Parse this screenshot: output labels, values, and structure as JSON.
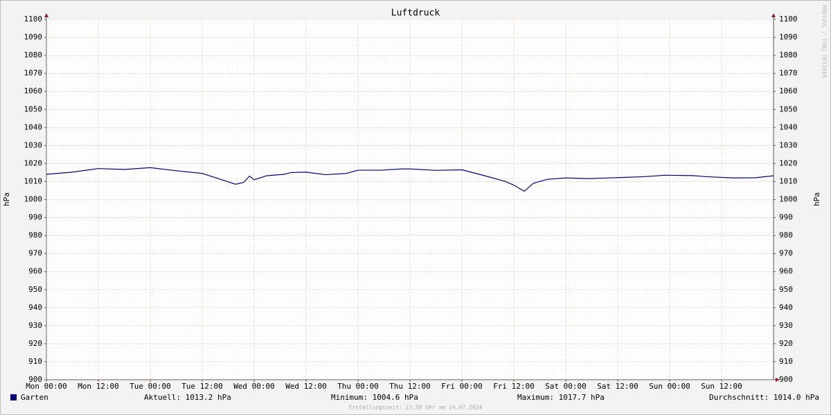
{
  "chart_data": {
    "type": "line",
    "title": "Luftdruck",
    "y_label": "hPa",
    "y2_label": "hPa",
    "watermark": "RRDTOOL / TOBI OETIKER",
    "footer": "Erstellungszeit: 23:58 Uhr am 14.07.2024",
    "x": [
      0,
      6,
      12,
      18,
      24,
      30,
      36,
      40.5,
      43.7,
      45.6,
      46.9,
      48,
      50.9,
      54.9,
      56.5,
      60,
      64.5,
      69.3,
      72,
      77.3,
      82.1,
      84,
      90.1,
      96,
      101.3,
      106.1,
      108,
      110.4,
      112.5,
      115.7,
      120,
      125.3,
      132,
      138.1,
      142.9,
      149.3,
      152.5,
      158.9,
      163.7,
      168
    ],
    "series": [
      {
        "name": "Garten",
        "color": "#000080",
        "values": [
          1014,
          1015.2,
          1017.2,
          1016.7,
          1017.7,
          1016,
          1014.5,
          1011,
          1008.5,
          1009.5,
          1013,
          1011,
          1013.2,
          1014,
          1015,
          1015.2,
          1013.8,
          1014.5,
          1016.3,
          1016.3,
          1017,
          1017,
          1016.2,
          1016.5,
          1013.2,
          1010,
          1008,
          1004.6,
          1009,
          1011.2,
          1012,
          1011.6,
          1012.2,
          1012.7,
          1013.5,
          1013.3,
          1012.7,
          1012,
          1012.1,
          1013.2
        ]
      }
    ],
    "stats": [
      "Aktuell: 1013.2 hPa",
      "Minimum: 1004.6 hPa",
      "Maximum: 1017.7 hPa",
      "Durchschnitt: 1014.0 hPa"
    ],
    "xlim": [
      0,
      168
    ],
    "xticks": [
      {
        "value": 0,
        "label": "Mon 00:00"
      },
      {
        "value": 12,
        "label": "Mon 12:00"
      },
      {
        "value": 24,
        "label": "Tue 00:00"
      },
      {
        "value": 36,
        "label": "Tue 12:00"
      },
      {
        "value": 48,
        "label": "Wed 00:00"
      },
      {
        "value": 60,
        "label": "Wed 12:00"
      },
      {
        "value": 72,
        "label": "Thu 00:00"
      },
      {
        "value": 84,
        "label": "Thu 12:00"
      },
      {
        "value": 96,
        "label": "Fri 00:00"
      },
      {
        "value": 108,
        "label": "Fri 12:00"
      },
      {
        "value": 120,
        "label": "Sat 00:00"
      },
      {
        "value": 132,
        "label": "Sat 12:00"
      },
      {
        "value": 144,
        "label": "Sun 00:00"
      },
      {
        "value": 156,
        "label": "Sun 12:00"
      }
    ],
    "ylim": [
      900,
      1100
    ],
    "yticks": [
      900,
      910,
      920,
      930,
      940,
      950,
      960,
      970,
      980,
      990,
      1000,
      1010,
      1020,
      1030,
      1040,
      1050,
      1060,
      1070,
      1080,
      1090,
      1100
    ],
    "y2lim": [
      900,
      1100
    ],
    "y2ticks": [
      900,
      910,
      920,
      930,
      940,
      950,
      960,
      970,
      980,
      990,
      1000,
      1010,
      1020,
      1030,
      1040,
      1050,
      1060,
      1070,
      1080,
      1090,
      1100
    ],
    "grid": true
  }
}
